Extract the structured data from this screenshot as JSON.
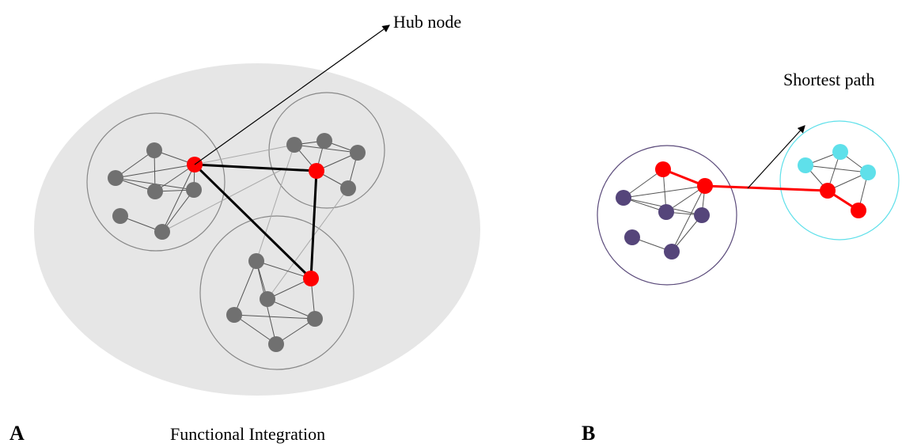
{
  "labels": {
    "hub": "Hub node",
    "shortest": "Shortest path",
    "panel_a": "A",
    "panel_b": "B",
    "caption_a": "Functional Integration"
  }
}
